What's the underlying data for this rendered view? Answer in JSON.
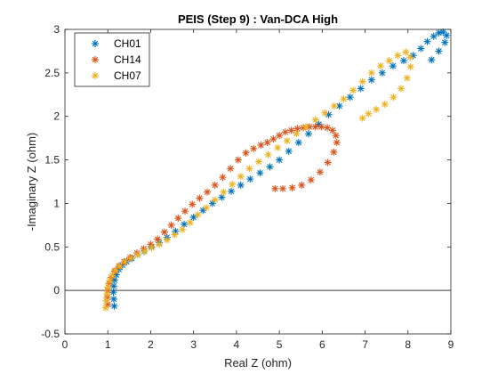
{
  "chart_data": {
    "type": "scatter",
    "title": "PEIS (Step 9) : Van-DCA High",
    "xlabel": "Real Z (ohm)",
    "ylabel": "-Imaginary Z (ohm)",
    "xlim": [
      0,
      9
    ],
    "ylim": [
      -0.5,
      3
    ],
    "xticks": [
      0,
      1,
      2,
      3,
      4,
      5,
      6,
      7,
      8,
      9
    ],
    "yticks": [
      -0.5,
      0,
      0.5,
      1,
      1.5,
      2,
      2.5,
      3
    ],
    "xtick_labels": [
      "0",
      "1",
      "2",
      "3",
      "4",
      "5",
      "6",
      "7",
      "8",
      "9"
    ],
    "ytick_labels": [
      "-0.5",
      "0",
      "0.5",
      "1",
      "1.5",
      "2",
      "2.5",
      "3"
    ],
    "grid": false,
    "reference_line_y": 0,
    "legend_position": "top-left",
    "marker": "asterisk",
    "series": [
      {
        "name": "CH01",
        "color": "#0072BD",
        "points": [
          [
            1.15,
            -0.18
          ],
          [
            1.14,
            -0.1
          ],
          [
            1.13,
            -0.02
          ],
          [
            1.14,
            0.05
          ],
          [
            1.16,
            0.12
          ],
          [
            1.2,
            0.18
          ],
          [
            1.26,
            0.24
          ],
          [
            1.34,
            0.29
          ],
          [
            1.44,
            0.33
          ],
          [
            1.56,
            0.37
          ],
          [
            1.7,
            0.41
          ],
          [
            1.85,
            0.45
          ],
          [
            2.02,
            0.5
          ],
          [
            2.2,
            0.55
          ],
          [
            2.38,
            0.61
          ],
          [
            2.58,
            0.68
          ],
          [
            2.78,
            0.76
          ],
          [
            3.0,
            0.84
          ],
          [
            3.22,
            0.92
          ],
          [
            3.44,
            1.0
          ],
          [
            3.66,
            1.07
          ],
          [
            3.88,
            1.14
          ],
          [
            4.1,
            1.21
          ],
          [
            4.32,
            1.28
          ],
          [
            4.55,
            1.35
          ],
          [
            4.78,
            1.42
          ],
          [
            5.0,
            1.5
          ],
          [
            5.22,
            1.6
          ],
          [
            5.45,
            1.7
          ],
          [
            5.68,
            1.8
          ],
          [
            5.92,
            1.91
          ],
          [
            6.15,
            2.02
          ],
          [
            6.4,
            2.12
          ],
          [
            6.65,
            2.22
          ],
          [
            6.9,
            2.32
          ],
          [
            7.15,
            2.42
          ],
          [
            7.4,
            2.5
          ],
          [
            7.65,
            2.58
          ],
          [
            7.9,
            2.64
          ],
          [
            8.12,
            2.7
          ],
          [
            8.3,
            2.78
          ],
          [
            8.45,
            2.86
          ],
          [
            8.6,
            2.92
          ],
          [
            8.72,
            2.96
          ],
          [
            8.82,
            2.97
          ],
          [
            8.9,
            2.93
          ],
          [
            8.86,
            2.85
          ],
          [
            8.72,
            2.75
          ],
          [
            8.55,
            2.65
          ]
        ]
      },
      {
        "name": "CH14",
        "color": "#D95319",
        "points": [
          [
            1.0,
            -0.16
          ],
          [
            0.99,
            -0.08
          ],
          [
            1.0,
            0.0
          ],
          [
            1.03,
            0.08
          ],
          [
            1.08,
            0.15
          ],
          [
            1.16,
            0.22
          ],
          [
            1.26,
            0.28
          ],
          [
            1.38,
            0.33
          ],
          [
            1.52,
            0.38
          ],
          [
            1.68,
            0.43
          ],
          [
            1.84,
            0.48
          ],
          [
            2.0,
            0.53
          ],
          [
            2.16,
            0.59
          ],
          [
            2.32,
            0.67
          ],
          [
            2.48,
            0.75
          ],
          [
            2.64,
            0.83
          ],
          [
            2.8,
            0.91
          ],
          [
            2.97,
            0.99
          ],
          [
            3.14,
            1.06
          ],
          [
            3.32,
            1.13
          ],
          [
            3.5,
            1.21
          ],
          [
            3.68,
            1.3
          ],
          [
            3.86,
            1.4
          ],
          [
            4.04,
            1.5
          ],
          [
            4.22,
            1.58
          ],
          [
            4.4,
            1.63
          ],
          [
            4.57,
            1.67
          ],
          [
            4.72,
            1.7
          ],
          [
            4.86,
            1.74
          ],
          [
            5.0,
            1.78
          ],
          [
            5.14,
            1.82
          ],
          [
            5.28,
            1.84
          ],
          [
            5.42,
            1.86
          ],
          [
            5.56,
            1.87
          ],
          [
            5.7,
            1.88
          ],
          [
            5.84,
            1.88
          ],
          [
            5.98,
            1.88
          ],
          [
            6.12,
            1.87
          ],
          [
            6.24,
            1.84
          ],
          [
            6.32,
            1.78
          ],
          [
            6.34,
            1.7
          ],
          [
            6.27,
            1.59
          ],
          [
            6.13,
            1.47
          ],
          [
            5.95,
            1.36
          ],
          [
            5.74,
            1.27
          ],
          [
            5.52,
            1.21
          ],
          [
            5.3,
            1.18
          ],
          [
            5.08,
            1.17
          ],
          [
            4.9,
            1.17
          ]
        ]
      },
      {
        "name": "CH07",
        "color": "#EDB120",
        "points": [
          [
            0.95,
            -0.2
          ],
          [
            0.96,
            -0.12
          ],
          [
            0.98,
            -0.04
          ],
          [
            1.0,
            0.04
          ],
          [
            1.04,
            0.11
          ],
          [
            1.1,
            0.17
          ],
          [
            1.18,
            0.23
          ],
          [
            1.28,
            0.28
          ],
          [
            1.4,
            0.33
          ],
          [
            1.54,
            0.37
          ],
          [
            1.7,
            0.41
          ],
          [
            1.86,
            0.45
          ],
          [
            2.02,
            0.49
          ],
          [
            2.2,
            0.53
          ],
          [
            2.38,
            0.58
          ],
          [
            2.56,
            0.64
          ],
          [
            2.74,
            0.7
          ],
          [
            2.92,
            0.78
          ],
          [
            3.1,
            0.87
          ],
          [
            3.3,
            0.95
          ],
          [
            3.5,
            1.04
          ],
          [
            3.7,
            1.13
          ],
          [
            3.9,
            1.22
          ],
          [
            4.1,
            1.31
          ],
          [
            4.3,
            1.4
          ],
          [
            4.52,
            1.48
          ],
          [
            4.74,
            1.56
          ],
          [
            4.96,
            1.64
          ],
          [
            5.18,
            1.72
          ],
          [
            5.4,
            1.8
          ],
          [
            5.62,
            1.88
          ],
          [
            5.84,
            1.96
          ],
          [
            6.06,
            2.04
          ],
          [
            6.28,
            2.12
          ],
          [
            6.5,
            2.2
          ],
          [
            6.72,
            2.3
          ],
          [
            6.94,
            2.4
          ],
          [
            7.15,
            2.5
          ],
          [
            7.36,
            2.58
          ],
          [
            7.56,
            2.64
          ],
          [
            7.76,
            2.7
          ],
          [
            7.95,
            2.74
          ],
          [
            8.05,
            2.68
          ],
          [
            8.06,
            2.57
          ],
          [
            7.98,
            2.44
          ],
          [
            7.84,
            2.32
          ],
          [
            7.66,
            2.22
          ],
          [
            7.46,
            2.14
          ],
          [
            7.26,
            2.08
          ],
          [
            7.08,
            2.03
          ],
          [
            6.94,
            1.98
          ]
        ]
      }
    ]
  }
}
